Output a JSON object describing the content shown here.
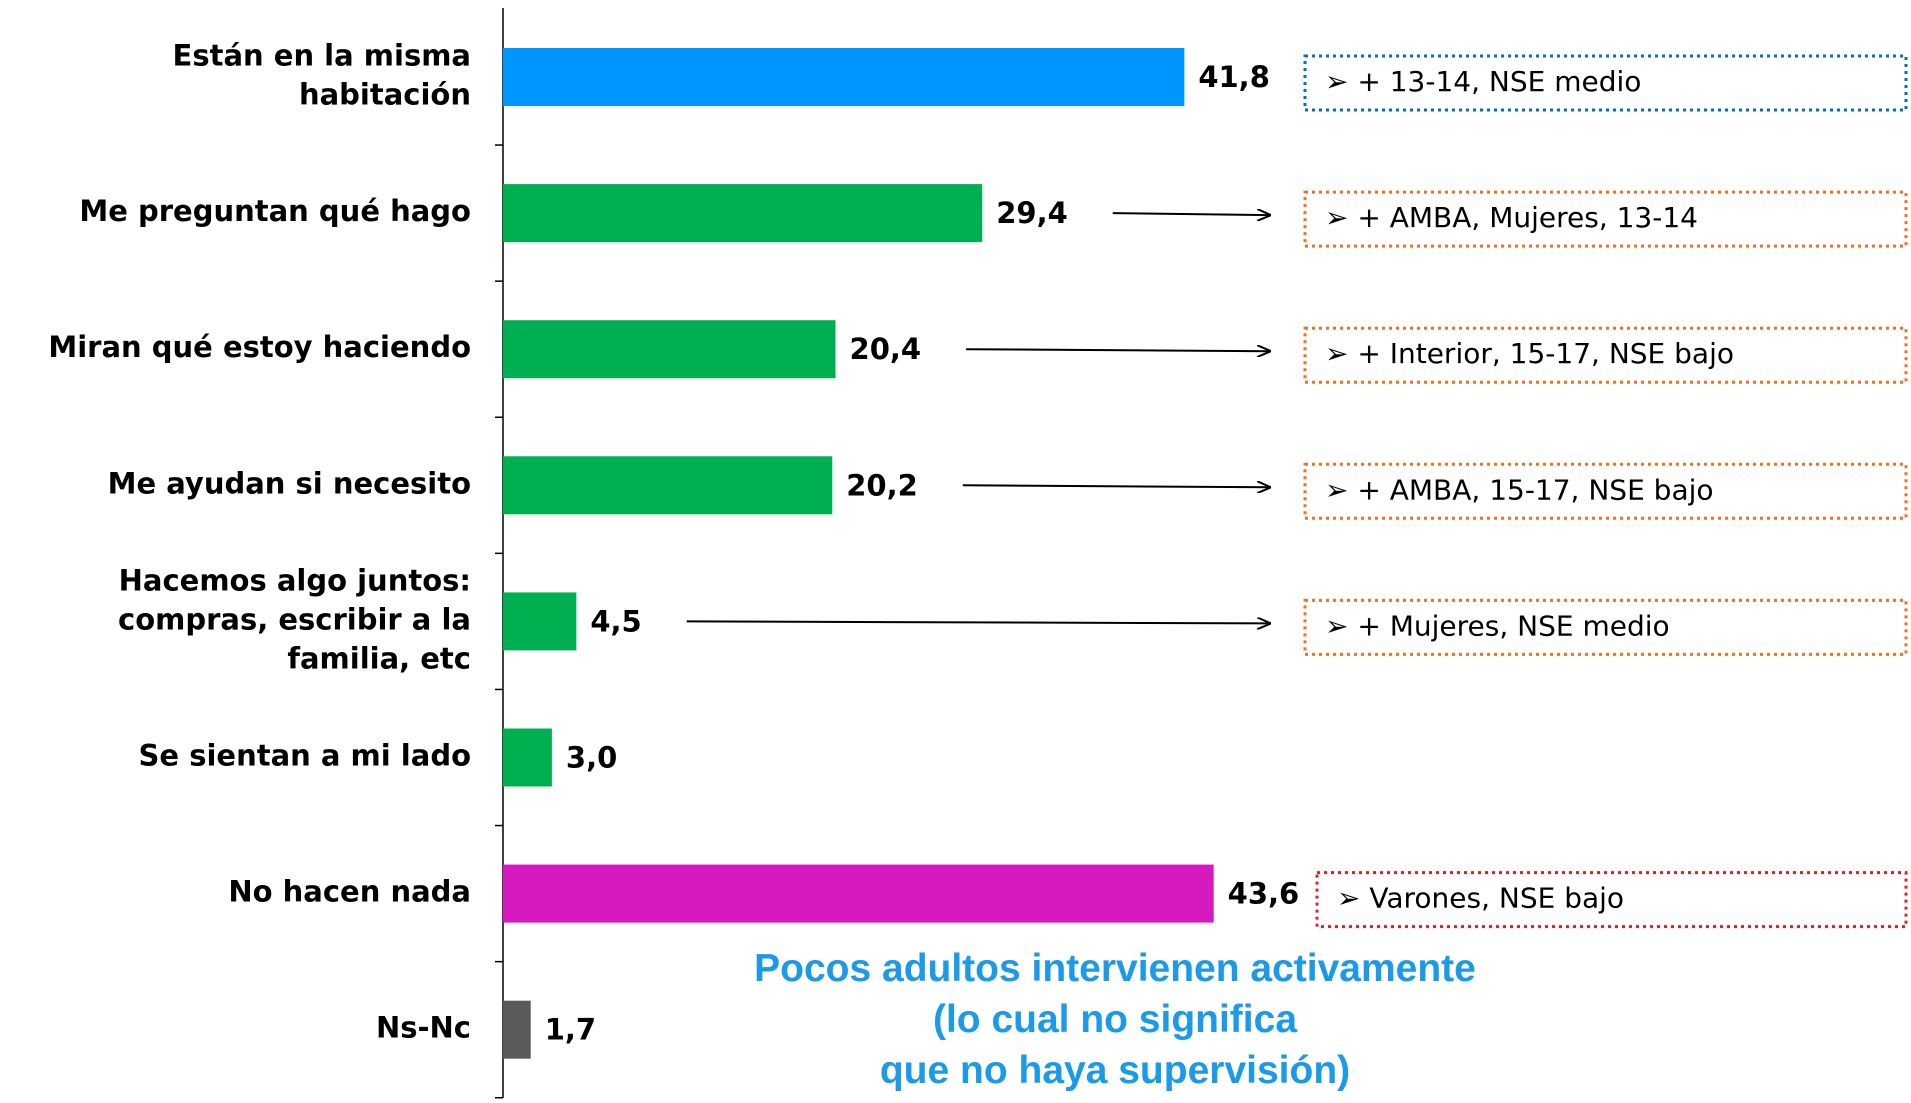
{
  "chart_data": {
    "type": "bar",
    "orientation": "horizontal",
    "categories": [
      "Están en la misma\nhabitación",
      "Me preguntan qué hago",
      "Miran qué estoy haciendo",
      "Me ayudan si necesito",
      "Hacemos algo juntos:\ncompras,  escribir a la\nfamilia, etc",
      "Se sientan a mi lado",
      "No hacen nada",
      "Ns-Nc"
    ],
    "values": [
      41.8,
      29.4,
      20.4,
      20.2,
      4.5,
      3.0,
      43.6,
      1.7
    ],
    "value_labels": [
      "41,8",
      "29,4",
      "20,4",
      "20,2",
      "4,5",
      "3,0",
      "43,6",
      "1,7"
    ],
    "colors": [
      "#0096ff",
      "#00b050",
      "#00b050",
      "#00b050",
      "#00b050",
      "#00b050",
      "#d61ac0",
      "#5a5a5a"
    ],
    "xlim": [
      0,
      70
    ],
    "annotations": [
      {
        "row": 0,
        "text": "➢ + 13-14, NSE medio",
        "color": "#0070c0",
        "arrow": false
      },
      {
        "row": 1,
        "text": "➢ + AMBA, Mujeres, 13-14",
        "color": "#f07020",
        "arrow": true
      },
      {
        "row": 2,
        "text": "➢ + Interior, 15-17, NSE bajo",
        "color": "#f07020",
        "arrow": true
      },
      {
        "row": 3,
        "text": "➢ + AMBA, 15-17, NSE bajo",
        "color": "#f07020",
        "arrow": true
      },
      {
        "row": 4,
        "text": "➢ + Mujeres, NSE medio",
        "color": "#f07020",
        "arrow": true
      },
      {
        "row": 6,
        "text": "➢ Varones, NSE bajo",
        "color": "#e02020",
        "arrow": false
      }
    ],
    "note": "Pocos adultos intervienen activamente\n(lo cual no significa\nque no  haya supervisión)"
  }
}
